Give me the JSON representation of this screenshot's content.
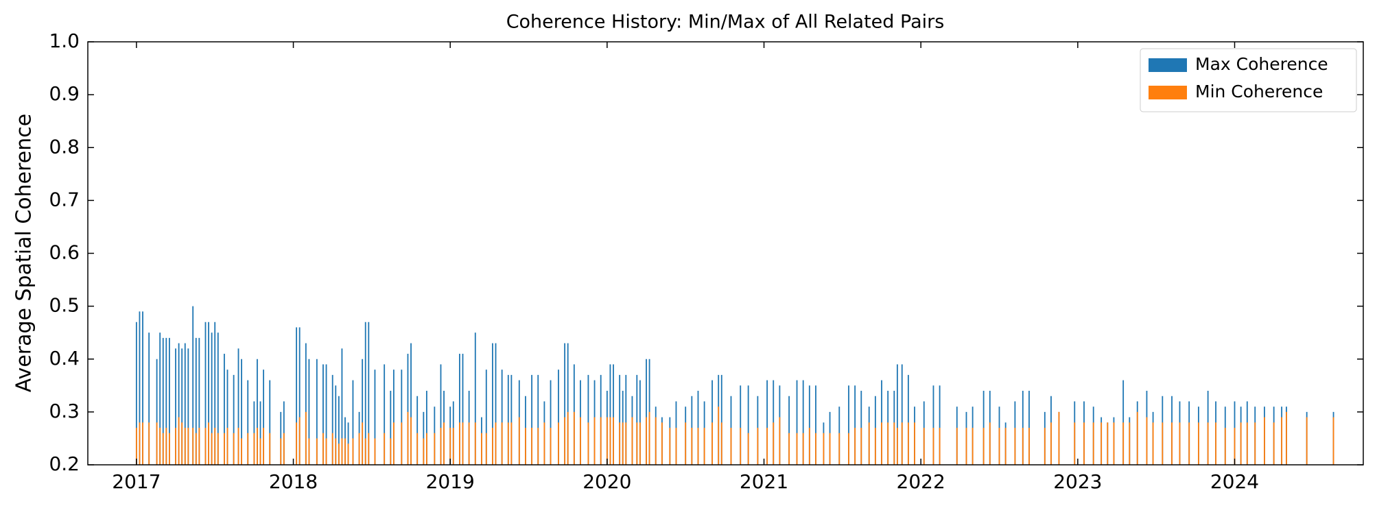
{
  "chart_data": {
    "type": "bar",
    "title": "Coherence History: Min/Max of All Related Pairs",
    "y_label": "Average Spatial Coherence",
    "x": [
      2017.0,
      2017.02,
      2017.04,
      2017.08,
      2017.13,
      2017.15,
      2017.17,
      2017.19,
      2017.21,
      2017.25,
      2017.27,
      2017.29,
      2017.31,
      2017.33,
      2017.36,
      2017.38,
      2017.4,
      2017.44,
      2017.46,
      2017.48,
      2017.5,
      2017.52,
      2017.56,
      2017.58,
      2017.62,
      2017.65,
      2017.67,
      2017.71,
      2017.75,
      2017.77,
      2017.79,
      2017.81,
      2017.85,
      2017.92,
      2017.94,
      2018.02,
      2018.04,
      2018.08,
      2018.1,
      2018.15,
      2018.19,
      2018.21,
      2018.25,
      2018.27,
      2018.29,
      2018.31,
      2018.33,
      2018.35,
      2018.38,
      2018.42,
      2018.44,
      2018.46,
      2018.48,
      2018.52,
      2018.58,
      2018.62,
      2018.64,
      2018.69,
      2018.73,
      2018.75,
      2018.79,
      2018.83,
      2018.85,
      2018.9,
      2018.94,
      2018.96,
      2019.0,
      2019.02,
      2019.06,
      2019.08,
      2019.12,
      2019.16,
      2019.2,
      2019.23,
      2019.27,
      2019.29,
      2019.33,
      2019.37,
      2019.39,
      2019.44,
      2019.48,
      2019.52,
      2019.56,
      2019.6,
      2019.64,
      2019.69,
      2019.73,
      2019.75,
      2019.79,
      2019.83,
      2019.88,
      2019.92,
      2019.96,
      2020.0,
      2020.02,
      2020.04,
      2020.08,
      2020.1,
      2020.12,
      2020.16,
      2020.19,
      2020.21,
      2020.25,
      2020.27,
      2020.31,
      2020.35,
      2020.4,
      2020.44,
      2020.5,
      2020.54,
      2020.58,
      2020.62,
      2020.67,
      2020.71,
      2020.73,
      2020.79,
      2020.85,
      2020.9,
      2020.96,
      2021.02,
      2021.06,
      2021.1,
      2021.16,
      2021.21,
      2021.25,
      2021.29,
      2021.33,
      2021.38,
      2021.42,
      2021.48,
      2021.54,
      2021.58,
      2021.62,
      2021.67,
      2021.71,
      2021.75,
      2021.79,
      2021.83,
      2021.85,
      2021.88,
      2021.92,
      2021.96,
      2022.02,
      2022.08,
      2022.12,
      2022.23,
      2022.29,
      2022.33,
      2022.4,
      2022.44,
      2022.5,
      2022.54,
      2022.6,
      2022.65,
      2022.69,
      2022.79,
      2022.83,
      2022.88,
      2022.98,
      2023.04,
      2023.1,
      2023.15,
      2023.19,
      2023.23,
      2023.29,
      2023.33,
      2023.38,
      2023.44,
      2023.48,
      2023.54,
      2023.6,
      2023.65,
      2023.71,
      2023.77,
      2023.83,
      2023.88,
      2023.94,
      2024.0,
      2024.04,
      2024.08,
      2024.13,
      2024.19,
      2024.25,
      2024.3,
      2024.33,
      2024.46,
      2024.63
    ],
    "series": [
      {
        "name": "Max Coherence",
        "color": "#1f77b4",
        "values": [
          0.47,
          0.49,
          0.49,
          0.45,
          0.4,
          0.45,
          0.44,
          0.44,
          0.44,
          0.42,
          0.43,
          0.42,
          0.43,
          0.42,
          0.5,
          0.44,
          0.44,
          0.47,
          0.47,
          0.45,
          0.47,
          0.45,
          0.41,
          0.38,
          0.37,
          0.42,
          0.4,
          0.36,
          0.32,
          0.4,
          0.32,
          0.38,
          0.36,
          0.3,
          0.32,
          0.46,
          0.46,
          0.43,
          0.4,
          0.4,
          0.39,
          0.39,
          0.37,
          0.35,
          0.33,
          0.42,
          0.29,
          0.28,
          0.36,
          0.3,
          0.4,
          0.47,
          0.47,
          0.38,
          0.39,
          0.34,
          0.38,
          0.38,
          0.41,
          0.43,
          0.33,
          0.3,
          0.34,
          0.31,
          0.39,
          0.34,
          0.31,
          0.32,
          0.41,
          0.41,
          0.34,
          0.45,
          0.29,
          0.38,
          0.43,
          0.43,
          0.38,
          0.37,
          0.37,
          0.36,
          0.33,
          0.37,
          0.37,
          0.32,
          0.36,
          0.38,
          0.43,
          0.43,
          0.39,
          0.36,
          0.37,
          0.36,
          0.37,
          0.34,
          0.39,
          0.39,
          0.37,
          0.34,
          0.37,
          0.33,
          0.37,
          0.36,
          0.4,
          0.4,
          0.31,
          0.29,
          0.29,
          0.32,
          0.31,
          0.33,
          0.34,
          0.32,
          0.36,
          0.37,
          0.37,
          0.33,
          0.35,
          0.35,
          0.33,
          0.36,
          0.36,
          0.35,
          0.33,
          0.36,
          0.36,
          0.35,
          0.35,
          0.28,
          0.3,
          0.31,
          0.35,
          0.35,
          0.34,
          0.31,
          0.33,
          0.36,
          0.34,
          0.34,
          0.39,
          0.39,
          0.37,
          0.31,
          0.32,
          0.35,
          0.35,
          0.31,
          0.3,
          0.31,
          0.34,
          0.34,
          0.31,
          0.28,
          0.32,
          0.34,
          0.34,
          0.3,
          0.33,
          0.3,
          0.32,
          0.32,
          0.31,
          0.29,
          0.28,
          0.29,
          0.36,
          0.29,
          0.32,
          0.34,
          0.3,
          0.33,
          0.33,
          0.32,
          0.32,
          0.31,
          0.34,
          0.32,
          0.31,
          0.32,
          0.31,
          0.32,
          0.31,
          0.31,
          0.31,
          0.31,
          0.31,
          0.3,
          0.3
        ]
      },
      {
        "name": "Min Coherence",
        "color": "#ff7f0e",
        "values": [
          0.27,
          0.28,
          0.28,
          0.28,
          0.28,
          0.27,
          0.26,
          0.27,
          0.26,
          0.27,
          0.29,
          0.28,
          0.27,
          0.27,
          0.27,
          0.26,
          0.27,
          0.27,
          0.28,
          0.26,
          0.27,
          0.26,
          0.26,
          0.27,
          0.26,
          0.27,
          0.25,
          0.26,
          0.26,
          0.27,
          0.25,
          0.27,
          0.26,
          0.25,
          0.26,
          0.28,
          0.29,
          0.3,
          0.25,
          0.25,
          0.26,
          0.25,
          0.26,
          0.25,
          0.24,
          0.25,
          0.25,
          0.24,
          0.25,
          0.26,
          0.28,
          0.25,
          0.26,
          0.25,
          0.26,
          0.25,
          0.28,
          0.28,
          0.3,
          0.29,
          0.26,
          0.25,
          0.26,
          0.26,
          0.27,
          0.28,
          0.27,
          0.27,
          0.28,
          0.28,
          0.28,
          0.28,
          0.26,
          0.26,
          0.27,
          0.28,
          0.28,
          0.28,
          0.28,
          0.29,
          0.27,
          0.27,
          0.27,
          0.28,
          0.27,
          0.28,
          0.29,
          0.3,
          0.3,
          0.29,
          0.28,
          0.29,
          0.29,
          0.29,
          0.29,
          0.29,
          0.28,
          0.28,
          0.28,
          0.29,
          0.28,
          0.28,
          0.29,
          0.3,
          0.29,
          0.28,
          0.27,
          0.27,
          0.28,
          0.27,
          0.27,
          0.27,
          0.28,
          0.31,
          0.28,
          0.27,
          0.27,
          0.26,
          0.27,
          0.27,
          0.28,
          0.29,
          0.26,
          0.26,
          0.26,
          0.27,
          0.26,
          0.26,
          0.26,
          0.26,
          0.26,
          0.27,
          0.27,
          0.28,
          0.27,
          0.28,
          0.28,
          0.28,
          0.27,
          0.28,
          0.28,
          0.28,
          0.27,
          0.27,
          0.27,
          0.27,
          0.27,
          0.27,
          0.27,
          0.28,
          0.27,
          0.27,
          0.27,
          0.27,
          0.27,
          0.27,
          0.28,
          0.3,
          0.28,
          0.28,
          0.28,
          0.28,
          0.28,
          0.28,
          0.28,
          0.28,
          0.3,
          0.29,
          0.28,
          0.28,
          0.28,
          0.28,
          0.28,
          0.28,
          0.28,
          0.28,
          0.27,
          0.27,
          0.28,
          0.28,
          0.28,
          0.29,
          0.28,
          0.29,
          0.3,
          0.29,
          0.29
        ]
      }
    ],
    "xlim": [
      2016.69,
      2024.82
    ],
    "xticks": [
      2017,
      2018,
      2019,
      2020,
      2021,
      2022,
      2023,
      2024
    ],
    "ylim": [
      0.2,
      1.0
    ],
    "yticks": [
      0.2,
      0.3,
      0.4,
      0.5,
      0.6,
      0.7,
      0.8,
      0.9,
      {
        "value": 1.0,
        "label": "1.0"
      }
    ],
    "legend": "upper right"
  }
}
